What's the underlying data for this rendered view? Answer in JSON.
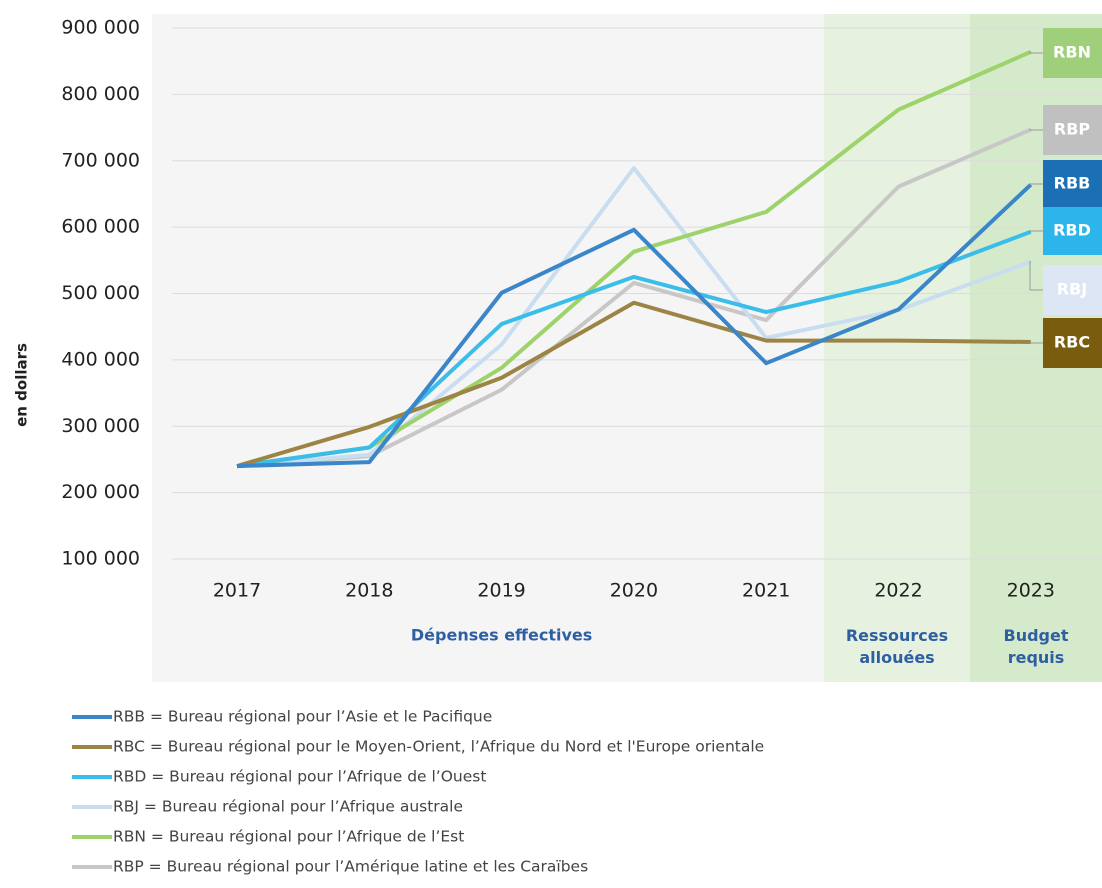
{
  "chart_data": {
    "type": "line",
    "y_label": "en dollars",
    "categories": [
      "2017",
      "2018",
      "2019",
      "2020",
      "2021",
      "2022",
      "2023"
    ],
    "periods": [
      {
        "label": "Dépenses effectives",
        "color": "#f5f5f5"
      },
      {
        "label": "Ressources allouées",
        "color": "#e6f2df"
      },
      {
        "label": "Budget requis",
        "color": "#d5eaca"
      }
    ],
    "ylim": [
      100000,
      900000
    ],
    "yticks": [
      {
        "value": 100000,
        "label": "100 000"
      },
      {
        "value": 200000,
        "label": "200 000"
      },
      {
        "value": 300000,
        "label": "300 000"
      },
      {
        "value": 400000,
        "label": "400 000"
      },
      {
        "value": 500000,
        "label": "500 000"
      },
      {
        "value": 600000,
        "label": "600 000"
      },
      {
        "value": 700000,
        "label": "700 000"
      },
      {
        "value": 800000,
        "label": "800 000"
      },
      {
        "value": 900000,
        "label": "900 000"
      }
    ],
    "grid": true,
    "series": [
      {
        "label": "RBB",
        "name": "RBB = Bureau régional pour l’Asie et le Pacifique",
        "color": "#3a86c8",
        "box_color": "#1a6fb5",
        "values": [
          240000,
          246000,
          501000,
          596000,
          395000,
          476000,
          664000
        ]
      },
      {
        "label": "RBC",
        "name": "RBC = Bureau régional pour le Moyen-Orient, l’Afrique du Nord et l'Europe orientale",
        "color": "#9c8444",
        "box_color": "#7a5c0e",
        "values": [
          240000,
          299000,
          373000,
          486000,
          429000,
          429000,
          427000
        ]
      },
      {
        "label": "RBD",
        "name": "RBD = Bureau régional pour l’Afrique de l’Ouest",
        "color": "#3bbde9",
        "box_color": "#2bb5ea",
        "values": [
          240000,
          268000,
          454000,
          525000,
          472000,
          518000,
          593000
        ]
      },
      {
        "label": "RBJ",
        "name": "RBJ = Bureau régional pour l’Afrique australe",
        "color": "#c9ddf0",
        "box_color": "#dce6f4",
        "values": [
          240000,
          257000,
          423000,
          689000,
          433000,
          475000,
          548000
        ]
      },
      {
        "label": "RBN",
        "name": "RBN = Bureau régional pour l’Afrique de l’Est",
        "color": "#9ed26a",
        "box_color": "#9fcf7b",
        "values": [
          240000,
          268000,
          388000,
          563000,
          623000,
          777000,
          864000
        ]
      },
      {
        "label": "RBP",
        "name": "RBP = Bureau régional pour l’Amérique latine et les Caraïbes",
        "color": "#c7c7c7",
        "box_color": "#c0c0c0",
        "values": [
          240000,
          255000,
          355000,
          516000,
          460000,
          661000,
          747000
        ]
      }
    ]
  }
}
